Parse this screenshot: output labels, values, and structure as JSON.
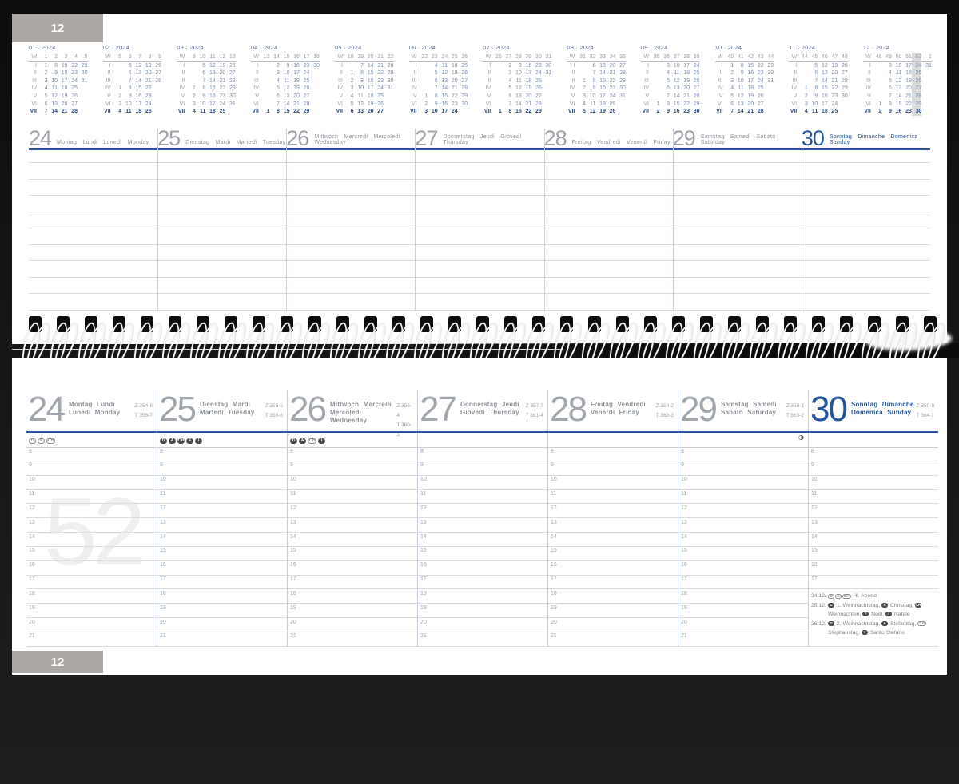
{
  "page": {
    "tab_top": "12",
    "tab_bottom": "12",
    "week_watermark": "52"
  },
  "colors": {
    "accent_blue": "#24549c",
    "line_blue": "#2b549b",
    "separator_blue": "#c3cfe3",
    "rule_grey": "#dedede",
    "tab_grey": "#aca8a5",
    "badge_dark": "#4b4b4b",
    "highlight_grey": "#d9d9d9"
  },
  "labels": {
    "w": "W",
    "rows": [
      "I",
      "II",
      "III",
      "IV",
      "V",
      "VI",
      "VII"
    ]
  },
  "mini_calendars": [
    {
      "title": "01 · 2024",
      "weeks": [
        "1",
        "2",
        "3",
        "4",
        "5"
      ],
      "rows": [
        [
          "1",
          "8",
          "15",
          "22",
          "29"
        ],
        [
          "2",
          "9",
          "16",
          "23",
          "30"
        ],
        [
          "3",
          "10",
          "17",
          "24",
          "31"
        ],
        [
          "4",
          "11",
          "18",
          "25"
        ],
        [
          "5",
          "12",
          "19",
          "26"
        ],
        [
          "6",
          "13",
          "20",
          "27"
        ],
        [
          "7",
          "14",
          "21",
          "28"
        ]
      ]
    },
    {
      "title": "02 · 2024",
      "weeks": [
        "5",
        "6",
        "7",
        "8",
        "9"
      ],
      "rows": [
        [
          "",
          "5",
          "12",
          "19",
          "26"
        ],
        [
          "",
          "6",
          "13",
          "20",
          "27"
        ],
        [
          "",
          "7",
          "14",
          "21",
          "28"
        ],
        [
          "1",
          "8",
          "15",
          "22"
        ],
        [
          "2",
          "9",
          "16",
          "23"
        ],
        [
          "3",
          "10",
          "17",
          "24"
        ],
        [
          "4",
          "11",
          "18",
          "25"
        ]
      ]
    },
    {
      "title": "03 · 2024",
      "weeks": [
        "9",
        "10",
        "11",
        "12",
        "13"
      ],
      "rows": [
        [
          "",
          "5",
          "12",
          "19",
          "26"
        ],
        [
          "",
          "6",
          "13",
          "20",
          "27"
        ],
        [
          "",
          "7",
          "14",
          "21",
          "28"
        ],
        [
          "1",
          "8",
          "15",
          "22",
          "29"
        ],
        [
          "2",
          "9",
          "16",
          "23",
          "30"
        ],
        [
          "3",
          "10",
          "17",
          "24",
          "31"
        ],
        [
          "4",
          "11",
          "18",
          "25"
        ]
      ]
    },
    {
      "title": "04 · 2024",
      "weeks": [
        "13",
        "14",
        "15",
        "16",
        "17",
        "18"
      ],
      "rows": [
        [
          "",
          "2",
          "9",
          "16",
          "23",
          "30"
        ],
        [
          "",
          "3",
          "10",
          "17",
          "24"
        ],
        [
          "",
          "4",
          "11",
          "18",
          "25"
        ],
        [
          "",
          "5",
          "12",
          "19",
          "26"
        ],
        [
          "",
          "6",
          "13",
          "20",
          "27"
        ],
        [
          "",
          "7",
          "14",
          "21",
          "28"
        ],
        [
          "1",
          "8",
          "15",
          "22",
          "29"
        ]
      ]
    },
    {
      "title": "05 · 2024",
      "weeks": [
        "18",
        "19",
        "20",
        "21",
        "22"
      ],
      "rows": [
        [
          "",
          "7",
          "14",
          "21",
          "28"
        ],
        [
          "1",
          "8",
          "15",
          "22",
          "29"
        ],
        [
          "2",
          "9",
          "16",
          "23",
          "30"
        ],
        [
          "3",
          "10",
          "17",
          "24",
          "31"
        ],
        [
          "4",
          "11",
          "18",
          "25"
        ],
        [
          "5",
          "12",
          "19",
          "26"
        ],
        [
          "6",
          "13",
          "20",
          "27"
        ]
      ]
    },
    {
      "title": "06 · 2024",
      "weeks": [
        "22",
        "23",
        "24",
        "25",
        "26"
      ],
      "rows": [
        [
          "",
          "4",
          "11",
          "18",
          "25"
        ],
        [
          "",
          "5",
          "12",
          "19",
          "26"
        ],
        [
          "",
          "6",
          "13",
          "20",
          "27"
        ],
        [
          "",
          "7",
          "14",
          "21",
          "28"
        ],
        [
          "1",
          "8",
          "15",
          "22",
          "29"
        ],
        [
          "2",
          "9",
          "16",
          "23",
          "30"
        ],
        [
          "3",
          "10",
          "17",
          "24"
        ]
      ]
    },
    {
      "title": "07 · 2024",
      "weeks": [
        "26",
        "27",
        "28",
        "29",
        "30",
        "31"
      ],
      "rows": [
        [
          "",
          "2",
          "9",
          "16",
          "23",
          "30"
        ],
        [
          "",
          "3",
          "10",
          "17",
          "24",
          "31"
        ],
        [
          "",
          "4",
          "11",
          "18",
          "25"
        ],
        [
          "",
          "5",
          "12",
          "19",
          "26"
        ],
        [
          "",
          "6",
          "13",
          "20",
          "27"
        ],
        [
          "",
          "7",
          "14",
          "21",
          "28"
        ],
        [
          "1",
          "8",
          "15",
          "22",
          "29"
        ]
      ]
    },
    {
      "title": "08 · 2024",
      "weeks": [
        "31",
        "32",
        "33",
        "34",
        "35"
      ],
      "rows": [
        [
          "",
          "6",
          "13",
          "20",
          "27"
        ],
        [
          "",
          "7",
          "14",
          "21",
          "28"
        ],
        [
          "1",
          "8",
          "15",
          "22",
          "29"
        ],
        [
          "2",
          "9",
          "16",
          "23",
          "30"
        ],
        [
          "3",
          "10",
          "17",
          "24",
          "31"
        ],
        [
          "4",
          "11",
          "18",
          "25"
        ],
        [
          "5",
          "12",
          "19",
          "26"
        ]
      ]
    },
    {
      "title": "09 · 2024",
      "weeks": [
        "35",
        "36",
        "37",
        "38",
        "39"
      ],
      "rows": [
        [
          "",
          "3",
          "10",
          "17",
          "24"
        ],
        [
          "",
          "4",
          "11",
          "18",
          "25"
        ],
        [
          "",
          "5",
          "12",
          "19",
          "26"
        ],
        [
          "",
          "6",
          "13",
          "20",
          "27"
        ],
        [
          "",
          "7",
          "14",
          "21",
          "28"
        ],
        [
          "1",
          "8",
          "15",
          "22",
          "29"
        ],
        [
          "2",
          "9",
          "16",
          "23",
          "30"
        ]
      ]
    },
    {
      "title": "10 · 2024",
      "weeks": [
        "40",
        "41",
        "42",
        "43",
        "44"
      ],
      "rows": [
        [
          "1",
          "8",
          "15",
          "22",
          "29"
        ],
        [
          "2",
          "9",
          "16",
          "23",
          "30"
        ],
        [
          "3",
          "10",
          "17",
          "24",
          "31"
        ],
        [
          "4",
          "11",
          "18",
          "25"
        ],
        [
          "5",
          "12",
          "19",
          "26"
        ],
        [
          "6",
          "13",
          "20",
          "27"
        ],
        [
          "7",
          "14",
          "21",
          "28"
        ]
      ]
    },
    {
      "title": "11 · 2024",
      "weeks": [
        "44",
        "45",
        "46",
        "47",
        "48"
      ],
      "rows": [
        [
          "",
          "5",
          "12",
          "19",
          "26"
        ],
        [
          "",
          "6",
          "13",
          "20",
          "27"
        ],
        [
          "",
          "7",
          "14",
          "21",
          "28"
        ],
        [
          "1",
          "8",
          "15",
          "22",
          "29"
        ],
        [
          "2",
          "9",
          "16",
          "23",
          "30"
        ],
        [
          "3",
          "10",
          "17",
          "24"
        ],
        [
          "4",
          "11",
          "18",
          "25"
        ]
      ]
    },
    {
      "title": "12 · 2024",
      "weeks": [
        "48",
        "49",
        "50",
        "51",
        "52",
        "1"
      ],
      "hl": 4,
      "rows": [
        [
          "",
          "3",
          "10",
          "17",
          "24",
          "31"
        ],
        [
          "",
          "4",
          "11",
          "18",
          "25"
        ],
        [
          "",
          "5",
          "12",
          "19",
          "26"
        ],
        [
          "",
          "6",
          "13",
          "20",
          "27"
        ],
        [
          "",
          "7",
          "14",
          "21",
          "28"
        ],
        [
          "1",
          "8",
          "15",
          "22",
          "29"
        ],
        [
          "2",
          "9",
          "16",
          "23",
          "30"
        ]
      ]
    }
  ],
  "top_week": {
    "ruled_rows": 10,
    "days": [
      {
        "num": "24",
        "names": "Montag  Lundi  Lunedì  Monday"
      },
      {
        "num": "25",
        "names": "Dienstag  Mardi  Martedì  Tuesday"
      },
      {
        "num": "26",
        "names": "Mittwoch  Mercredi  Mercoledì  Wednesday"
      },
      {
        "num": "27",
        "names": "Donnerstag  Jeudi  Giovedì  Thursday"
      },
      {
        "num": "28",
        "names": "Freitag  Vendredi  Venerdì  Friday"
      },
      {
        "num": "29",
        "names": "Samstag  Samedi  Sabato  Saturday"
      },
      {
        "num": "30",
        "names": "Sonntag  Dimanche  Domenica  Sunday",
        "accent": true
      }
    ]
  },
  "bottom_week": {
    "days": [
      {
        "num": "24",
        "line1": "Montag  Lundi",
        "line2": "Lunedì  Monday",
        "z": "Z 354-6",
        "t": "T 358-7",
        "badges": [
          {
            "c": "D",
            "o": 1
          },
          {
            "c": "A",
            "o": 1
          },
          {
            "c": "CH",
            "o": 1
          }
        ],
        "hours": [
          "8",
          "9",
          "10",
          "11",
          "12",
          "13",
          "14",
          "15",
          "16",
          "17",
          "18",
          "19",
          "20",
          "21"
        ]
      },
      {
        "num": "25",
        "line1": "Dienstag  Mardi",
        "line2": "Martedì  Tuesday",
        "z": "Z 355-5",
        "t": "T 359-6",
        "badges": [
          {
            "c": "D"
          },
          {
            "c": "A"
          },
          {
            "c": "CH"
          },
          {
            "c": "F"
          },
          {
            "c": "I"
          }
        ],
        "hours": [
          "8",
          "9",
          "10",
          "11",
          "12",
          "13",
          "14",
          "15",
          "16",
          "17",
          "18",
          "19",
          "20",
          "21"
        ]
      },
      {
        "num": "26",
        "line1": "Mittwoch  Mercredi",
        "line2": "Mercoledì  Wednesday",
        "z": "Z 356-4",
        "t": "T 360-5",
        "badges": [
          {
            "c": "D"
          },
          {
            "c": "A"
          },
          {
            "c": "CH",
            "o": 1
          },
          {
            "c": "I"
          }
        ],
        "hours": [
          "8",
          "9",
          "10",
          "11",
          "12",
          "13",
          "14",
          "15",
          "16",
          "17",
          "18",
          "19",
          "20",
          "21"
        ]
      },
      {
        "num": "27",
        "line1": "Donnerstag  Jeudi",
        "line2": "Giovedì  Thursday",
        "z": "Z 357-3",
        "t": "T 361-4",
        "badges": [],
        "hours": [
          "8",
          "9",
          "10",
          "11",
          "12",
          "13",
          "14",
          "15",
          "16",
          "17",
          "18",
          "19",
          "20",
          "21"
        ]
      },
      {
        "num": "28",
        "line1": "Freitag  Vendredi",
        "line2": "Venerdì  Friday",
        "z": "Z 358-2",
        "t": "T 362-3",
        "badges": [],
        "hours": [
          "8",
          "9",
          "10",
          "11",
          "12",
          "13",
          "14",
          "15",
          "16",
          "17",
          "18",
          "19",
          "20",
          "21"
        ]
      },
      {
        "num": "29",
        "line1": "Samstag  Samedi",
        "line2": "Sabato  Saturday",
        "z": "Z 359-1",
        "t": "T 363-2",
        "badges": [],
        "moon": "◑",
        "hours": [
          "8",
          "9",
          "10",
          "11",
          "12",
          "13",
          "14",
          "15",
          "16",
          "17",
          "18",
          "19",
          "20",
          "21"
        ]
      },
      {
        "num": "30",
        "line1": "Sonntag  Dimanche",
        "line2": "Domenica  Sunday",
        "z": "Z 360-0",
        "t": "T 364-1",
        "accent": true,
        "badges": [],
        "hours": [
          "8",
          "9",
          "10",
          "11",
          "12",
          "13",
          "14",
          "15",
          "16",
          "17"
        ],
        "holidays": [
          {
            "date": "24.12.",
            "items": [
              {
                "b": "D",
                "o": 1
              },
              {
                "b": "A",
                "o": 1
              },
              {
                "b": "CH",
                "o": 1
              },
              {
                "t": " Hl. Abend"
              }
            ]
          },
          {
            "date": "25.12.",
            "items": [
              {
                "b": "D"
              },
              {
                "t": " 1. Weihnachtstag, "
              },
              {
                "b": "A"
              },
              {
                "t": " Christtag, "
              },
              {
                "b": "CH"
              },
              {
                "t": " Weihnachten, "
              },
              {
                "b": "F"
              },
              {
                "t": " Noël, "
              },
              {
                "b": "I"
              },
              {
                "t": " Natale"
              }
            ]
          },
          {
            "date": "26.12.",
            "items": [
              {
                "b": "D"
              },
              {
                "t": " 2. Weihnachtstag, "
              },
              {
                "b": "A"
              },
              {
                "t": " Stefanitag, "
              },
              {
                "b": "CH",
                "o": 1
              },
              {
                "t": " Stephanstag, "
              },
              {
                "b": "I"
              },
              {
                "t": " Santo Stefano"
              }
            ]
          }
        ]
      }
    ]
  }
}
